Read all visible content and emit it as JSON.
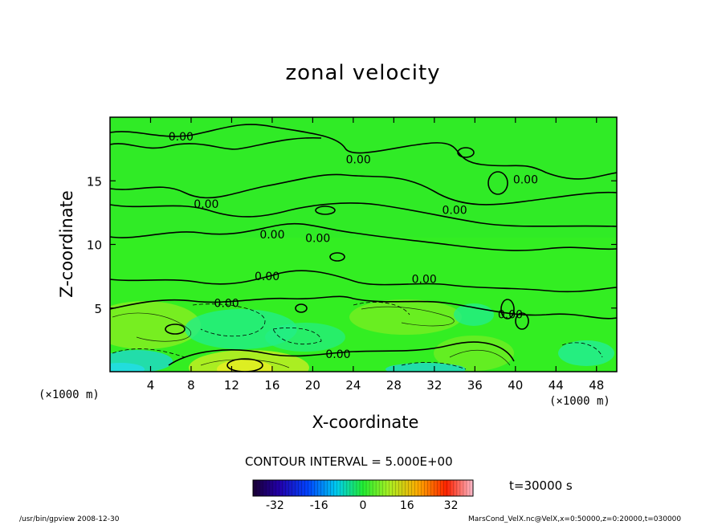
{
  "chart_data": {
    "type": "heatmap",
    "title": "zonal velocity",
    "xlabel": "X-coordinate",
    "ylabel": "Z-coordinate",
    "x_unit_label": "(×1000 m)",
    "x_ticks": [
      4,
      8,
      12,
      16,
      20,
      24,
      28,
      32,
      36,
      40,
      44,
      48
    ],
    "y_ticks": [
      5,
      10,
      15
    ],
    "xlim": [
      0,
      50
    ],
    "ylim": [
      0,
      20
    ],
    "contour_interval": "CONTOUR INTERVAL = 5.000E+00",
    "contour_labels": [
      {
        "text": "0.00",
        "x": 7.0,
        "z": 18.5
      },
      {
        "text": "0.00",
        "x": 24.5,
        "z": 16.7
      },
      {
        "text": "0.00",
        "x": 41.0,
        "z": 15.1
      },
      {
        "text": "0.00",
        "x": 9.5,
        "z": 13.2
      },
      {
        "text": "0.00",
        "x": 34.0,
        "z": 12.7
      },
      {
        "text": "0.00",
        "x": 16.0,
        "z": 10.8
      },
      {
        "text": "0.00",
        "x": 20.5,
        "z": 10.5
      },
      {
        "text": "0.00",
        "x": 15.5,
        "z": 7.5
      },
      {
        "text": "0.00",
        "x": 31.0,
        "z": 7.3
      },
      {
        "text": "0.00",
        "x": 11.5,
        "z": 5.4
      },
      {
        "text": "0.00",
        "x": 22.5,
        "z": 1.4
      },
      {
        "text": "0.00",
        "x": 39.5,
        "z": 4.5
      }
    ],
    "colorbar": {
      "ticks": [
        "-32",
        "-16",
        "0",
        "16",
        "32"
      ],
      "range": [
        -40,
        40
      ]
    },
    "time_label": "t=30000 s"
  },
  "colors": {
    "field_base": "#33ee22",
    "plot_border": "#000000"
  },
  "footer": {
    "left": "/usr/bin/gpview   2008-12-30",
    "right": "MarsCond_VelX.nc@VelX,x=0:50000,z=0:20000,t=030000"
  }
}
